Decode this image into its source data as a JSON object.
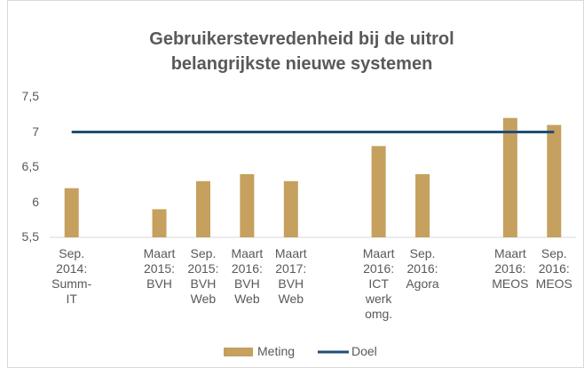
{
  "chart_data": {
    "type": "bar",
    "title": "Gebruikerstevredenheid bij de uitrol\nbelangrijkste nieuwe systemen",
    "categories": [
      "Sep.\n2014:\nSumm-\nIT",
      null,
      "Maart\n2015:\nBVH",
      "Sep.\n2015:\nBVH\nWeb",
      "Maart\n2016:\nBVH\nWeb",
      "Maart\n2017:\nBVH\nWeb",
      null,
      "Maart\n2016:\nICT\nwerk\nomg.",
      "Sep.\n2016:\nAgora",
      null,
      "Maart\n2016:\nMEOS",
      "Sep.\n2016:\nMEOS"
    ],
    "series": [
      {
        "name": "Meting",
        "type": "bar",
        "color": "#c5a05e",
        "values": [
          6.2,
          null,
          5.9,
          6.3,
          6.4,
          6.3,
          null,
          6.8,
          6.4,
          null,
          7.2,
          7.1
        ]
      },
      {
        "name": "Doel",
        "type": "line",
        "color": "#1f4e79",
        "values": [
          7,
          7,
          7,
          7,
          7,
          7,
          7,
          7,
          7,
          7,
          7,
          7
        ]
      }
    ],
    "ylim": [
      5.5,
      7.5
    ],
    "yticks": [
      {
        "value": 5.5,
        "label": "5,5"
      },
      6,
      {
        "value": 6.5,
        "label": "6,5"
      },
      7,
      {
        "value": 7.5,
        "label": "7,5"
      }
    ],
    "grid": false,
    "legend": "bottom"
  }
}
